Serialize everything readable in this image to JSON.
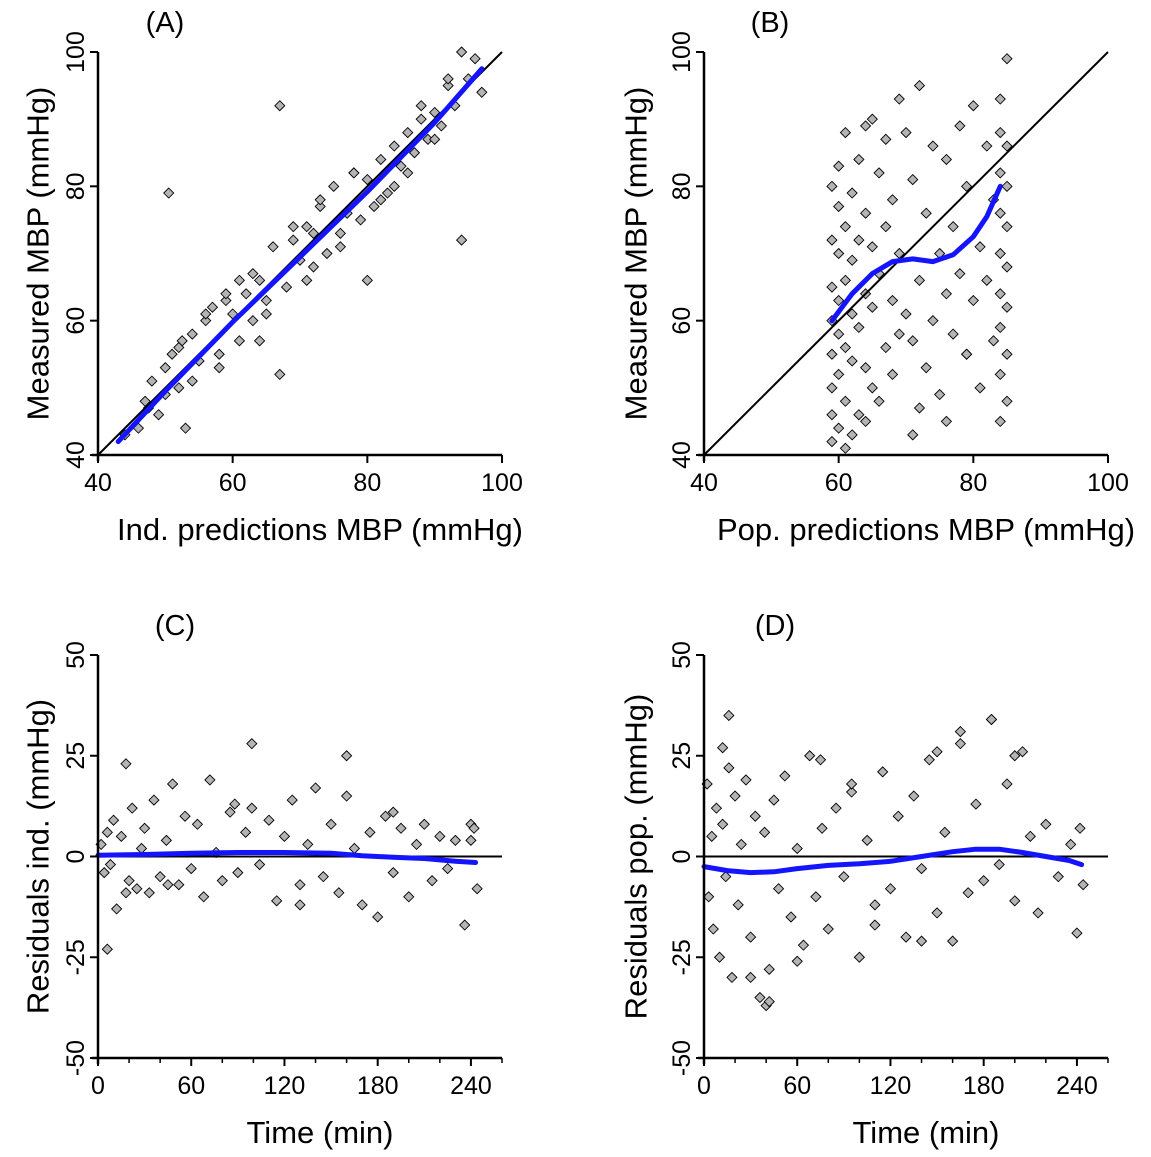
{
  "chart_data": [
    {
      "panel_label": "(A)",
      "type": "scatter",
      "xlabel": "Ind. predictions MBP (mmHg)",
      "ylabel": "Measured MBP (mmHg)",
      "xlim": [
        40,
        100
      ],
      "ylim": [
        40,
        100
      ],
      "xticks": [
        40,
        60,
        80,
        100
      ],
      "yticks": [
        40,
        60,
        80,
        100
      ],
      "reference_line": "identity",
      "point_color": "#b4b4b4",
      "smooth_color": "#1414ff",
      "smooth": {
        "x": [
          43,
          50,
          60,
          70,
          80,
          90,
          97
        ],
        "y": [
          42,
          49.5,
          59.8,
          69.5,
          79.2,
          89.5,
          97.5
        ]
      },
      "points": {
        "x": [
          44,
          46,
          47.5,
          48,
          49,
          50,
          50.5,
          51,
          52,
          52.5,
          53,
          54,
          55,
          56,
          57,
          58,
          59,
          60,
          61,
          62,
          63,
          64,
          65,
          66,
          67,
          68,
          69,
          70,
          71,
          72,
          73,
          74,
          75,
          76,
          77,
          78,
          79,
          80,
          81,
          82,
          83,
          84,
          85,
          86,
          87,
          88,
          89,
          90,
          91,
          92,
          93,
          94,
          95,
          96,
          97,
          50,
          67,
          94,
          80,
          47,
          52,
          56,
          63,
          71,
          76,
          84,
          90,
          58,
          61,
          65,
          69,
          73,
          78,
          82,
          88,
          92,
          54,
          59,
          64,
          72,
          86
        ],
        "y": [
          43,
          44,
          47,
          51,
          46,
          53,
          79,
          55,
          50,
          57,
          44,
          58,
          54,
          60,
          62,
          55,
          63,
          61,
          57,
          64,
          60,
          66,
          63,
          71,
          92,
          65,
          72,
          69,
          74,
          68,
          77,
          70,
          80,
          73,
          76,
          82,
          75,
          81,
          77,
          84,
          79,
          86,
          83,
          88,
          85,
          90,
          87,
          91,
          89,
          95,
          92,
          100,
          96,
          99,
          94,
          49,
          52,
          72,
          66,
          48,
          56,
          61,
          67,
          66,
          71,
          80,
          87,
          53,
          66,
          61,
          74,
          78,
          82,
          78,
          92,
          96,
          51,
          64,
          57,
          73,
          82
        ]
      }
    },
    {
      "panel_label": "(B)",
      "type": "scatter",
      "xlabel": "Pop. predictions MBP (mmHg)",
      "ylabel": "Measured MBP (mmHg)",
      "xlim": [
        40,
        100
      ],
      "ylim": [
        40,
        100
      ],
      "xticks": [
        40,
        60,
        80,
        100
      ],
      "yticks": [
        40,
        60,
        80,
        100
      ],
      "reference_line": "identity",
      "point_color": "#b4b4b4",
      "smooth_color": "#1414ff",
      "smooth": {
        "x": [
          59,
          62,
          65,
          68,
          71,
          74,
          77,
          80,
          82,
          84
        ],
        "y": [
          60,
          64,
          67,
          68.8,
          69.2,
          68.8,
          69.8,
          72.5,
          75.5,
          80
        ]
      },
      "points": {
        "x": [
          59,
          59,
          59,
          59,
          59,
          59,
          59,
          59,
          60,
          60,
          60,
          60,
          60,
          60,
          60,
          61,
          61,
          61,
          61,
          61,
          61,
          62,
          62,
          62,
          62,
          62,
          63,
          63,
          63,
          63,
          64,
          64,
          64,
          64,
          64,
          65,
          65,
          65,
          65,
          66,
          66,
          66,
          67,
          67,
          67,
          68,
          68,
          68,
          69,
          69,
          69,
          70,
          70,
          71,
          71,
          72,
          72,
          73,
          73,
          74,
          74,
          75,
          75,
          76,
          76,
          77,
          77,
          78,
          78,
          79,
          79,
          80,
          80,
          81,
          81,
          82,
          82,
          83,
          83,
          84,
          84,
          84,
          84,
          84,
          84,
          84,
          84,
          84,
          85,
          85,
          85,
          85,
          85,
          85,
          85,
          85,
          71,
          72,
          76,
          79
        ],
        "y": [
          42,
          46,
          50,
          55,
          60,
          65,
          72,
          80,
          44,
          52,
          58,
          63,
          70,
          77,
          83,
          41,
          48,
          56,
          66,
          74,
          88,
          43,
          54,
          61,
          69,
          79,
          46,
          59,
          72,
          84,
          45,
          53,
          64,
          76,
          89,
          50,
          62,
          71,
          90,
          48,
          67,
          82,
          56,
          74,
          87,
          52,
          63,
          78,
          58,
          70,
          93,
          61,
          88,
          57,
          81,
          66,
          95,
          53,
          76,
          60,
          86,
          70,
          49,
          64,
          84,
          58,
          74,
          67,
          89,
          55,
          80,
          63,
          92,
          71,
          50,
          66,
          86,
          57,
          78,
          45,
          52,
          59,
          64,
          70,
          76,
          82,
          88,
          93,
          48,
          55,
          62,
          68,
          74,
          80,
          86,
          99,
          43,
          47,
          45,
          55
        ]
      }
    },
    {
      "panel_label": "(C)",
      "type": "scatter",
      "xlabel": "Time (min)",
      "ylabel": "Residuals ind. (mmHg)",
      "xlim": [
        0,
        260
      ],
      "ylim": [
        -50,
        50
      ],
      "xticks": [
        0,
        60,
        120,
        180,
        240
      ],
      "yticks": [
        -50,
        -25,
        0,
        25,
        50
      ],
      "reference_line": "zero",
      "point_color": "#b4b4b4",
      "smooth_color": "#1414ff",
      "smooth": {
        "x": [
          0,
          30,
          60,
          90,
          120,
          150,
          170,
          190,
          210,
          230,
          243
        ],
        "y": [
          0.3,
          0.5,
          0.8,
          1,
          1,
          0.8,
          0.2,
          -0.2,
          -0.5,
          -1.2,
          -1.5
        ]
      },
      "points": {
        "x": [
          2,
          4,
          6,
          8,
          10,
          12,
          15,
          18,
          20,
          22,
          25,
          28,
          30,
          33,
          36,
          40,
          44,
          48,
          52,
          56,
          60,
          64,
          68,
          72,
          76,
          80,
          85,
          90,
          95,
          99,
          104,
          110,
          115,
          120,
          125,
          130,
          135,
          140,
          145,
          150,
          155,
          160,
          165,
          170,
          175,
          180,
          185,
          190,
          195,
          200,
          205,
          210,
          215,
          220,
          225,
          230,
          236,
          240,
          242,
          244,
          6,
          18,
          99,
          160,
          240,
          45,
          88,
          130,
          190
        ],
        "y": [
          3,
          -4,
          6,
          -2,
          9,
          -13,
          5,
          23,
          -6,
          12,
          -8,
          2,
          7,
          -9,
          14,
          -5,
          4,
          18,
          -7,
          10,
          -3,
          8,
          -10,
          19,
          1,
          -6,
          11,
          -4,
          6,
          28,
          -2,
          9,
          -11,
          5,
          14,
          -7,
          3,
          17,
          -5,
          8,
          -9,
          25,
          2,
          -12,
          6,
          -15,
          10,
          -4,
          7,
          -10,
          3,
          8,
          -6,
          5,
          -3,
          4,
          -17,
          8,
          7,
          -8,
          -23,
          -9,
          12,
          15,
          4,
          -7,
          13,
          -12,
          11
        ]
      }
    },
    {
      "panel_label": "(D)",
      "type": "scatter",
      "xlabel": "Time (min)",
      "ylabel": "Residuals pop. (mmHg)",
      "xlim": [
        0,
        260
      ],
      "ylim": [
        -50,
        50
      ],
      "xticks": [
        0,
        60,
        120,
        180,
        240
      ],
      "yticks": [
        -50,
        -25,
        0,
        25,
        50
      ],
      "reference_line": "zero",
      "point_color": "#b4b4b4",
      "smooth_color": "#1414ff",
      "smooth": {
        "x": [
          0,
          15,
          30,
          45,
          60,
          80,
          100,
          120,
          140,
          160,
          175,
          190,
          205,
          220,
          235,
          243
        ],
        "y": [
          -2.5,
          -3.5,
          -4,
          -3.8,
          -3,
          -2.2,
          -1.8,
          -1.2,
          0,
          1.2,
          1.8,
          1.8,
          1,
          0,
          -1,
          -2
        ]
      },
      "points": {
        "x": [
          2,
          3,
          5,
          6,
          8,
          10,
          12,
          14,
          16,
          18,
          20,
          22,
          24,
          27,
          30,
          33,
          36,
          39,
          42,
          45,
          48,
          52,
          56,
          60,
          64,
          68,
          72,
          76,
          80,
          85,
          90,
          95,
          100,
          105,
          110,
          115,
          120,
          125,
          130,
          135,
          140,
          145,
          150,
          155,
          160,
          165,
          170,
          175,
          180,
          185,
          190,
          195,
          200,
          205,
          210,
          215,
          220,
          228,
          236,
          240,
          242,
          244,
          16,
          40,
          42,
          185,
          165,
          12,
          60,
          75,
          110,
          150,
          200,
          30,
          95,
          140
        ],
        "y": [
          18,
          -10,
          5,
          -18,
          12,
          -25,
          8,
          -5,
          22,
          -30,
          15,
          -12,
          3,
          19,
          -20,
          10,
          -35,
          6,
          -28,
          14,
          -8,
          20,
          -15,
          2,
          -22,
          25,
          -10,
          7,
          -18,
          12,
          -5,
          16,
          -25,
          4,
          -12,
          21,
          -8,
          10,
          -20,
          15,
          -3,
          24,
          -14,
          6,
          -21,
          28,
          -9,
          13,
          -6,
          34,
          -2,
          18,
          -11,
          26,
          5,
          -14,
          8,
          -5,
          3,
          -19,
          7,
          -7,
          35,
          -37,
          -36,
          34,
          31,
          27,
          -26,
          24,
          -17,
          26,
          25,
          -30,
          18,
          -21
        ]
      }
    }
  ]
}
